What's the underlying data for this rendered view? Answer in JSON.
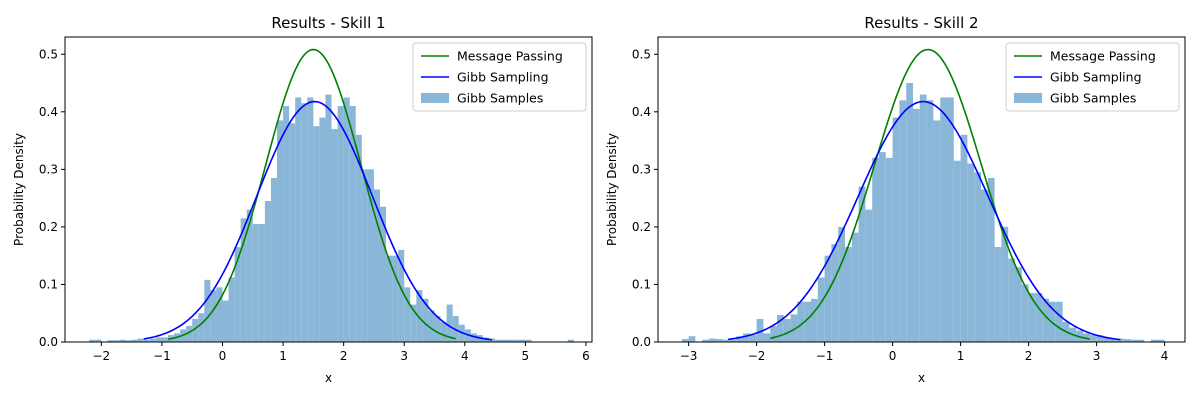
{
  "chart_data": [
    {
      "type": "histogram+line",
      "title": "Results - Skill 1",
      "xlabel": "x",
      "ylabel": "Probability Density",
      "xlim": [
        -2.6,
        6.1
      ],
      "ylim": [
        0,
        0.53
      ],
      "xticks": [
        -2,
        -1,
        0,
        1,
        2,
        3,
        4,
        5,
        6
      ],
      "yticks": [
        0.0,
        0.1,
        0.2,
        0.3,
        0.4,
        0.5
      ],
      "tick_format_y": 1,
      "legend_position": "top-right",
      "grid": false,
      "legend": [
        {
          "label": "Message Passing",
          "color": "#008000",
          "kind": "line"
        },
        {
          "label": "Gibb Sampling",
          "color": "#0000ff",
          "kind": "line"
        },
        {
          "label": "Gibb Samples",
          "color": "#8ab7d8",
          "kind": "patch"
        }
      ],
      "message_passing": {
        "mean": 1.5,
        "std": 0.785,
        "x_range": [
          -0.9,
          3.85
        ],
        "color": "#008000"
      },
      "gibb_sampling": {
        "mean": 1.52,
        "std": 0.955,
        "x_range": [
          -1.3,
          4.45
        ],
        "color": "#0000ff"
      },
      "histogram": {
        "color": "#8ab7d8",
        "x": [
          -2.2,
          -2.1,
          -1.9,
          -1.8,
          -1.7,
          -1.6,
          -1.5,
          -1.4,
          -1.3,
          -1.2,
          -1.1,
          -1.0,
          -0.9,
          -0.8,
          -0.7,
          -0.6,
          -0.5,
          -0.4,
          -0.3,
          -0.2,
          -0.1,
          0.0,
          0.1,
          0.2,
          0.3,
          0.4,
          0.5,
          0.6,
          0.7,
          0.8,
          0.9,
          1.0,
          1.1,
          1.2,
          1.3,
          1.4,
          1.5,
          1.6,
          1.7,
          1.8,
          1.9,
          2.0,
          2.1,
          2.2,
          2.3,
          2.4,
          2.5,
          2.6,
          2.7,
          2.8,
          2.9,
          3.0,
          3.1,
          3.2,
          3.3,
          3.4,
          3.5,
          3.6,
          3.7,
          3.8,
          3.9,
          4.0,
          4.1,
          4.2,
          4.3,
          4.4,
          4.5,
          4.6,
          4.7,
          4.8,
          4.9,
          5.0,
          5.7
        ],
        "density": [
          0.004,
          0.004,
          0.003,
          0.003,
          0.004,
          0.003,
          0.004,
          0.006,
          0.004,
          0.006,
          0.008,
          0.008,
          0.012,
          0.015,
          0.022,
          0.028,
          0.04,
          0.05,
          0.108,
          0.09,
          0.095,
          0.072,
          0.112,
          0.165,
          0.215,
          0.23,
          0.205,
          0.205,
          0.245,
          0.285,
          0.385,
          0.41,
          0.38,
          0.425,
          0.415,
          0.425,
          0.375,
          0.39,
          0.43,
          0.37,
          0.41,
          0.425,
          0.41,
          0.36,
          0.3,
          0.3,
          0.265,
          0.235,
          0.15,
          0.15,
          0.16,
          0.095,
          0.065,
          0.09,
          0.075,
          0.055,
          0.045,
          0.035,
          0.065,
          0.045,
          0.03,
          0.022,
          0.015,
          0.012,
          0.008,
          0.006,
          0.004,
          0.004,
          0.004,
          0.004,
          0.004,
          0.004,
          0.004
        ]
      }
    },
    {
      "type": "histogram+line",
      "title": "Results - Skill 2",
      "xlabel": "x",
      "ylabel": "Probability Density",
      "xlim": [
        -3.45,
        4.3
      ],
      "ylim": [
        0,
        0.53
      ],
      "xticks": [
        -3,
        -2,
        -1,
        0,
        1,
        2,
        3,
        4
      ],
      "yticks": [
        0.0,
        0.1,
        0.2,
        0.3,
        0.4,
        0.5
      ],
      "tick_format_y": 1,
      "legend_position": "top-right",
      "grid": false,
      "legend": [
        {
          "label": "Message Passing",
          "color": "#008000",
          "kind": "line"
        },
        {
          "label": "Gibb Sampling",
          "color": "#0000ff",
          "kind": "line"
        },
        {
          "label": "Gibb Samples",
          "color": "#8ab7d8",
          "kind": "patch"
        }
      ],
      "message_passing": {
        "mean": 0.52,
        "std": 0.785,
        "x_range": [
          -1.8,
          2.9
        ],
        "color": "#008000"
      },
      "gibb_sampling": {
        "mean": 0.45,
        "std": 0.955,
        "x_range": [
          -2.42,
          3.35
        ],
        "color": "#0000ff"
      },
      "histogram": {
        "color": "#8ab7d8",
        "x": [
          -3.1,
          -3.0,
          -2.8,
          -2.7,
          -2.6,
          -2.5,
          -2.4,
          -2.3,
          -2.2,
          -2.1,
          -2.0,
          -1.9,
          -1.8,
          -1.7,
          -1.6,
          -1.5,
          -1.4,
          -1.3,
          -1.2,
          -1.1,
          -1.0,
          -0.9,
          -0.8,
          -0.7,
          -0.6,
          -0.5,
          -0.4,
          -0.3,
          -0.2,
          -0.1,
          0.0,
          0.1,
          0.2,
          0.3,
          0.4,
          0.5,
          0.6,
          0.7,
          0.8,
          0.9,
          1.0,
          1.1,
          1.2,
          1.3,
          1.4,
          1.5,
          1.6,
          1.7,
          1.8,
          1.9,
          2.0,
          2.1,
          2.2,
          2.3,
          2.4,
          2.5,
          2.6,
          2.7,
          2.8,
          2.9,
          3.0,
          3.1,
          3.2,
          3.3,
          3.4,
          3.5,
          3.6,
          3.8,
          3.9
        ],
        "density": [
          0.005,
          0.01,
          0.004,
          0.006,
          0.005,
          0.004,
          0.004,
          0.01,
          0.015,
          0.012,
          0.04,
          0.015,
          0.028,
          0.047,
          0.04,
          0.048,
          0.07,
          0.07,
          0.075,
          0.112,
          0.15,
          0.17,
          0.2,
          0.165,
          0.19,
          0.27,
          0.23,
          0.32,
          0.33,
          0.32,
          0.39,
          0.42,
          0.45,
          0.405,
          0.43,
          0.42,
          0.385,
          0.425,
          0.425,
          0.315,
          0.36,
          0.31,
          0.295,
          0.265,
          0.285,
          0.165,
          0.2,
          0.145,
          0.13,
          0.1,
          0.085,
          0.085,
          0.075,
          0.07,
          0.07,
          0.035,
          0.025,
          0.02,
          0.015,
          0.012,
          0.012,
          0.008,
          0.006,
          0.006,
          0.005,
          0.004,
          0.004,
          0.004,
          0.004
        ]
      }
    }
  ]
}
